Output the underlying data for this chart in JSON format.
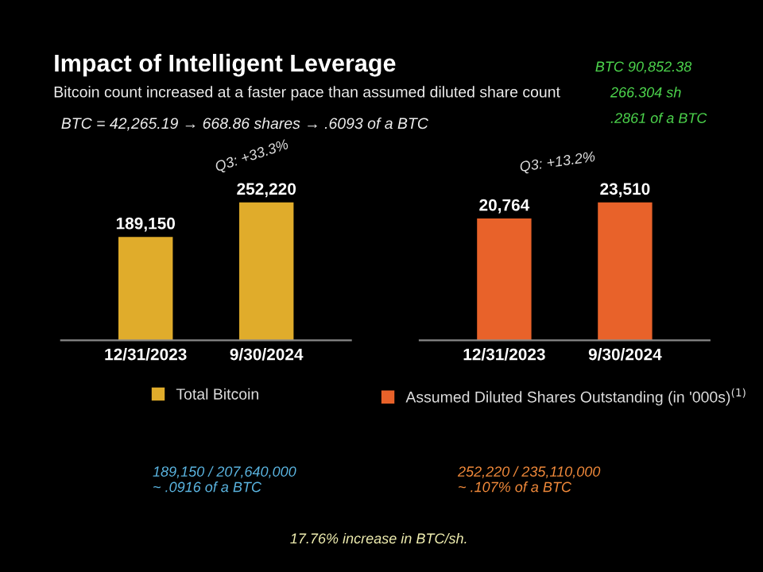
{
  "chart_data": [
    {
      "type": "bar",
      "title": "Impact of Intelligent Leverage",
      "subtitle": "Bitcoin count increased at a faster pace than assumed diluted share count",
      "categories": [
        "12/31/2023",
        "9/30/2024"
      ],
      "series": [
        {
          "name": "Total Bitcoin",
          "color": "#e0ac2b",
          "values": [
            189150,
            252220
          ],
          "value_labels": [
            "189,150",
            "252,220"
          ]
        }
      ],
      "legend": "bottom",
      "grid": false,
      "annotations": [
        "Q3: +33.3%",
        "BTC = 42,265.19 → 668.86 shares → .6093 of a BTC",
        "189,150 / 207,640,000\n~ .0916 of a BTC"
      ]
    },
    {
      "type": "bar",
      "categories": [
        "12/31/2023",
        "9/30/2024"
      ],
      "series": [
        {
          "name": "Assumed Diluted Shares Outstanding (in '000s)$^{(1)}$",
          "color": "#e8622a",
          "values": [
            20764,
            23510
          ],
          "value_labels": [
            "20,764",
            "23,510"
          ]
        }
      ],
      "legend": "bottom",
      "grid": false,
      "annotations": [
        "Q3: +13.2%",
        "BTC 90,852.38",
        "266.304 sh",
        ".2861 of a BTC",
        "252,220 / 235,110,000\n~ .107% of a BTC",
        "17.76% increase in BTC/sh."
      ]
    }
  ]
}
